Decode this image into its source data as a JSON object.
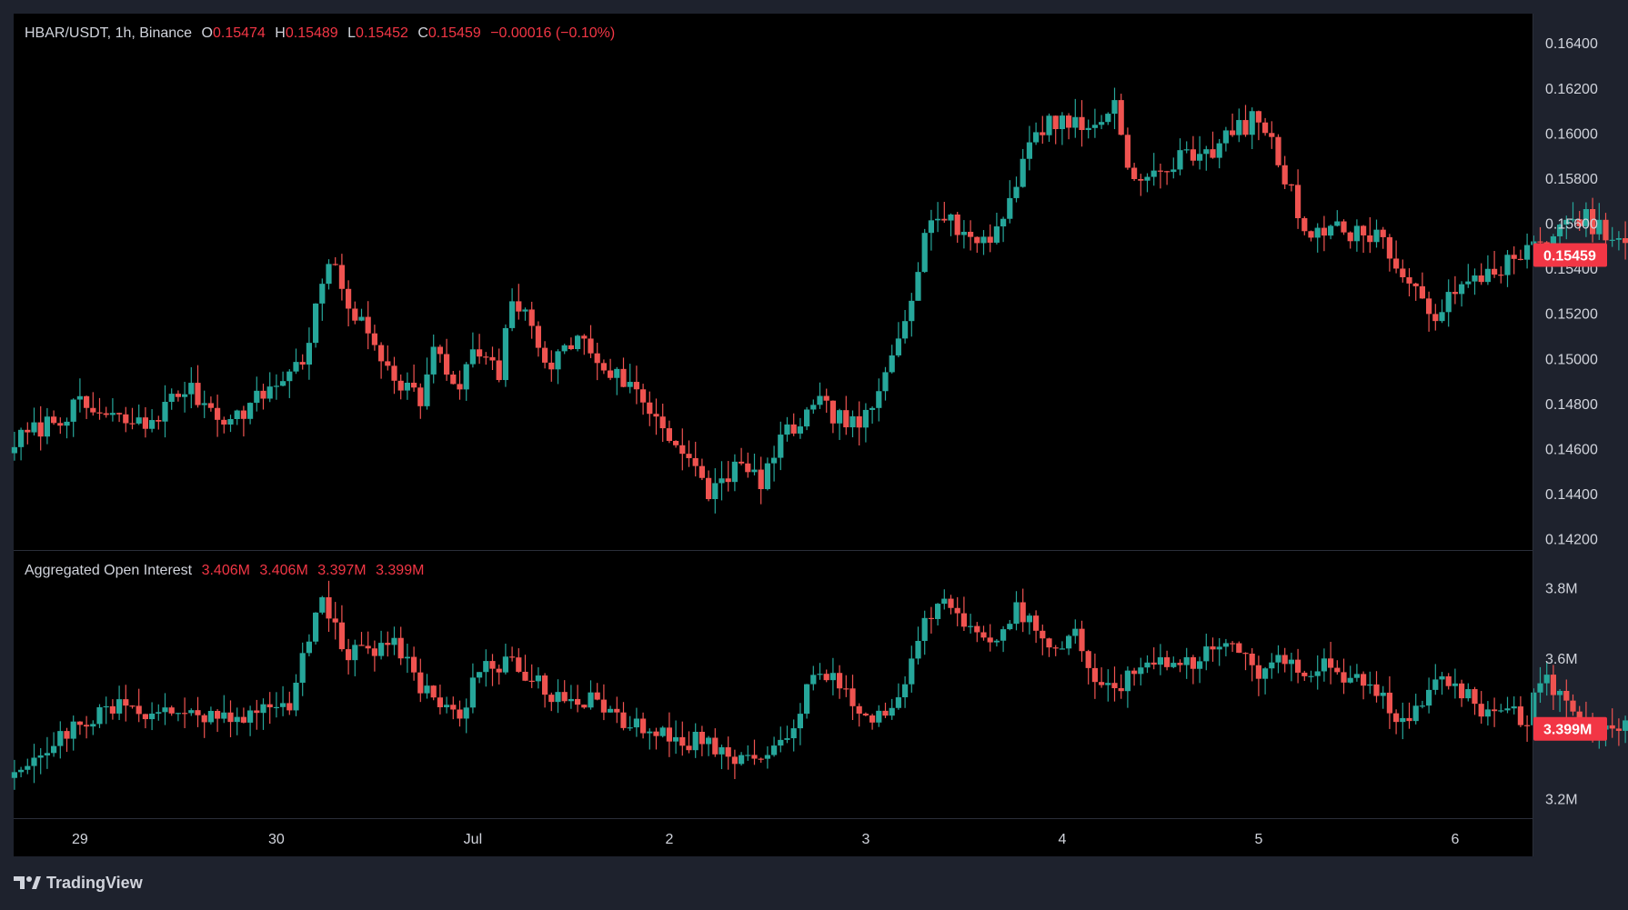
{
  "header": {
    "symbol": "HBAR/USDT, 1h, Binance",
    "open_label": "O",
    "open": "0.15474",
    "high_label": "H",
    "high": "0.15489",
    "low_label": "L",
    "low": "0.15452",
    "close_label": "C",
    "close": "0.15459",
    "change": "−0.00016 (−0.10%)"
  },
  "oi_header": {
    "title": "Aggregated Open Interest",
    "v1": "3.406M",
    "v2": "3.406M",
    "v3": "3.397M",
    "v4": "3.399M"
  },
  "footer": {
    "brand": "TradingView"
  },
  "colors": {
    "up": "#26a69a",
    "down": "#ef5350",
    "background": "#000000",
    "badge": "#f23645",
    "text": "#d1d4dc",
    "border": "#2a2e39"
  },
  "chart_data": [
    {
      "type": "candlestick",
      "ylim": [
        0.1415,
        0.1653
      ],
      "y_ticks": [
        "0.16400",
        "0.16200",
        "0.16000",
        "0.15800",
        "0.15600",
        "0.15400",
        "0.15200",
        "0.15000",
        "0.14800",
        "0.14600",
        "0.14400",
        "0.14200"
      ],
      "x_ticks": [
        "29",
        "30",
        "Jul",
        "2",
        "3",
        "4",
        "5",
        "6"
      ],
      "last_price": "0.15459",
      "price_path": [
        [
          0,
          0.1463
        ],
        [
          10,
          0.1479
        ],
        [
          14,
          0.1474
        ],
        [
          20,
          0.147
        ],
        [
          26,
          0.1487
        ],
        [
          33,
          0.1472
        ],
        [
          44,
          0.1499
        ],
        [
          48,
          0.1543
        ],
        [
          52,
          0.1519
        ],
        [
          58,
          0.1493
        ],
        [
          62,
          0.1482
        ],
        [
          64,
          0.1503
        ],
        [
          68,
          0.1485
        ],
        [
          70,
          0.1504
        ],
        [
          74,
          0.1492
        ],
        [
          76,
          0.1528
        ],
        [
          82,
          0.1497
        ],
        [
          86,
          0.151
        ],
        [
          90,
          0.1496
        ],
        [
          94,
          0.1488
        ],
        [
          100,
          0.1467
        ],
        [
          106,
          0.144
        ],
        [
          110,
          0.1452
        ],
        [
          114,
          0.1446
        ],
        [
          118,
          0.1467
        ],
        [
          123,
          0.1479
        ],
        [
          128,
          0.147
        ],
        [
          131,
          0.1475
        ],
        [
          137,
          0.153
        ],
        [
          140,
          0.1565
        ],
        [
          147,
          0.1552
        ],
        [
          150,
          0.1557
        ],
        [
          156,
          0.1601
        ],
        [
          160,
          0.1607
        ],
        [
          164,
          0.1601
        ],
        [
          168,
          0.1613
        ],
        [
          171,
          0.1577
        ],
        [
          174,
          0.1581
        ],
        [
          180,
          0.1592
        ],
        [
          183,
          0.1593
        ],
        [
          187,
          0.1602
        ],
        [
          190,
          0.1607
        ],
        [
          193,
          0.1588
        ],
        [
          197,
          0.1558
        ],
        [
          202,
          0.1557
        ],
        [
          206,
          0.1555
        ],
        [
          208,
          0.1557
        ],
        [
          213,
          0.153
        ],
        [
          217,
          0.1521
        ],
        [
          224,
          0.1537
        ],
        [
          230,
          0.1545
        ],
        [
          235,
          0.1555
        ],
        [
          240,
          0.1562
        ],
        [
          245,
          0.155
        ],
        [
          248,
          0.1556
        ],
        [
          251,
          0.1533
        ],
        [
          253,
          0.1545
        ],
        [
          255,
          0.1546
        ]
      ]
    },
    {
      "type": "candlestick",
      "title": "Aggregated Open Interest",
      "ylim": [
        3.145,
        3.905
      ],
      "y_ticks": [
        "3.8M",
        "3.6M",
        "3.2M"
      ],
      "last_value": "3.399M",
      "oi_path": [
        [
          0,
          3.29
        ],
        [
          5,
          3.34
        ],
        [
          10,
          3.42
        ],
        [
          16,
          3.46
        ],
        [
          26,
          3.44
        ],
        [
          33,
          3.44
        ],
        [
          38,
          3.45
        ],
        [
          42,
          3.46
        ],
        [
          44,
          3.6
        ],
        [
          47,
          3.8
        ],
        [
          48,
          3.71
        ],
        [
          51,
          3.61
        ],
        [
          55,
          3.62
        ],
        [
          58,
          3.66
        ],
        [
          62,
          3.52
        ],
        [
          64,
          3.5
        ],
        [
          68,
          3.43
        ],
        [
          70,
          3.52
        ],
        [
          72,
          3.58
        ],
        [
          76,
          3.59
        ],
        [
          82,
          3.5
        ],
        [
          88,
          3.48
        ],
        [
          93,
          3.41
        ],
        [
          96,
          3.4
        ],
        [
          100,
          3.37
        ],
        [
          106,
          3.36
        ],
        [
          110,
          3.31
        ],
        [
          113,
          3.33
        ],
        [
          117,
          3.36
        ],
        [
          120,
          3.44
        ],
        [
          122,
          3.57
        ],
        [
          125,
          3.55
        ],
        [
          129,
          3.45
        ],
        [
          133,
          3.43
        ],
        [
          136,
          3.54
        ],
        [
          139,
          3.72
        ],
        [
          142,
          3.77
        ],
        [
          145,
          3.67
        ],
        [
          150,
          3.65
        ],
        [
          153,
          3.74
        ],
        [
          158,
          3.65
        ],
        [
          162,
          3.66
        ],
        [
          165,
          3.55
        ],
        [
          168,
          3.51
        ],
        [
          172,
          3.57
        ],
        [
          176,
          3.58
        ],
        [
          180,
          3.59
        ],
        [
          183,
          3.64
        ],
        [
          186,
          3.67
        ],
        [
          188,
          3.59
        ],
        [
          191,
          3.55
        ],
        [
          193,
          3.59
        ],
        [
          197,
          3.56
        ],
        [
          200,
          3.6
        ],
        [
          204,
          3.53
        ],
        [
          208,
          3.52
        ],
        [
          211,
          3.44
        ],
        [
          214,
          3.45
        ],
        [
          217,
          3.53
        ],
        [
          220,
          3.51
        ],
        [
          224,
          3.46
        ],
        [
          228,
          3.44
        ],
        [
          231,
          3.43
        ],
        [
          233,
          3.55
        ],
        [
          236,
          3.5
        ],
        [
          240,
          3.41
        ],
        [
          244,
          3.38
        ],
        [
          248,
          3.42
        ],
        [
          251,
          3.38
        ],
        [
          253,
          3.4
        ],
        [
          255,
          3.4
        ]
      ]
    }
  ]
}
